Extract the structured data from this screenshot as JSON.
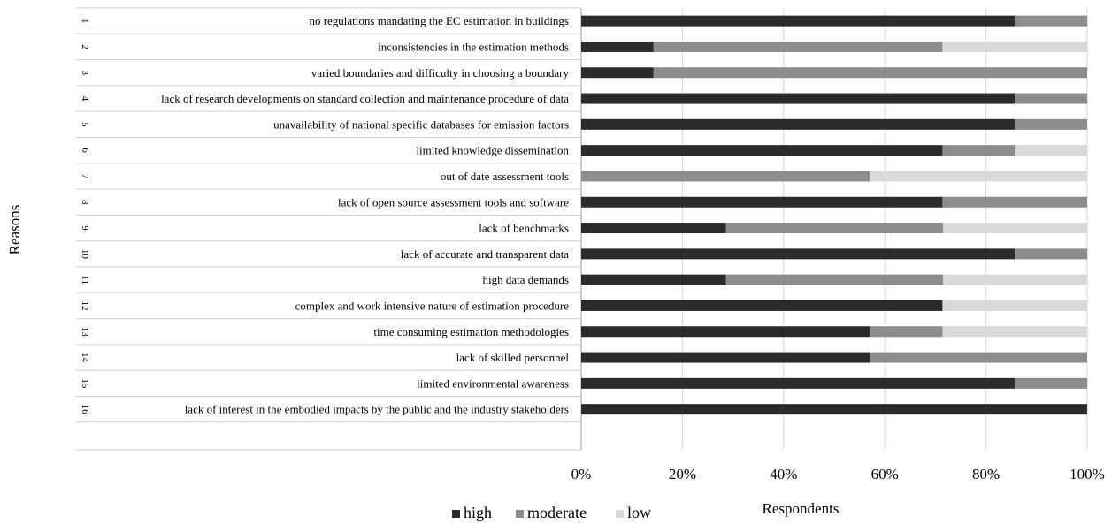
{
  "chart_data": {
    "type": "bar",
    "orientation": "horizontal",
    "stacked": true,
    "percent": true,
    "xlabel": "Respondents",
    "ylabel": "Reasons",
    "xlim": [
      0,
      100
    ],
    "xticks": [
      "0%",
      "20%",
      "40%",
      "60%",
      "80%",
      "100%"
    ],
    "grid": true,
    "legend_position": "bottom",
    "categories": [
      {
        "num": "1",
        "label": "no regulations mandating the EC estimation in buildings"
      },
      {
        "num": "2",
        "label": "inconsistencies in the estimation methods"
      },
      {
        "num": "3",
        "label": "varied boundaries and difficulty in choosing a boundary"
      },
      {
        "num": "4",
        "label": "lack of research developments on standard collection and maintenance procedure of data"
      },
      {
        "num": "5",
        "label": "unavailability of national specific databases for emission factors"
      },
      {
        "num": "6",
        "label": "limited knowledge dissemination"
      },
      {
        "num": "7",
        "label": "out of date assessment tools"
      },
      {
        "num": "8",
        "label": "lack of open source assessment tools and software"
      },
      {
        "num": "9",
        "label": "lack of benchmarks"
      },
      {
        "num": "10",
        "label": "lack of accurate and transparent data"
      },
      {
        "num": "11",
        "label": "high data demands"
      },
      {
        "num": "12",
        "label": "complex and work intensive nature of estimation procedure"
      },
      {
        "num": "13",
        "label": "time consuming estimation methodologies"
      },
      {
        "num": "14",
        "label": "lack of skilled personnel"
      },
      {
        "num": "15",
        "label": "limited environmental awareness"
      },
      {
        "num": "16",
        "label": "lack of interest in the embodied impacts by the public and the industry stakeholders"
      }
    ],
    "series": [
      {
        "name": "high",
        "color": "#2b2b2b",
        "values": [
          85.7,
          14.3,
          14.3,
          85.7,
          85.7,
          71.4,
          0,
          71.4,
          28.6,
          85.7,
          28.6,
          71.4,
          57.1,
          57.1,
          85.7,
          100
        ]
      },
      {
        "name": "moderate",
        "color": "#8c8c8c",
        "values": [
          14.3,
          57.1,
          85.7,
          14.3,
          14.3,
          14.3,
          57.1,
          28.6,
          42.9,
          14.3,
          42.9,
          0,
          14.3,
          42.9,
          14.3,
          0
        ]
      },
      {
        "name": "low",
        "color": "#d9d9d9",
        "values": [
          0,
          28.6,
          0,
          0,
          0,
          14.3,
          42.9,
          0,
          28.6,
          0,
          28.6,
          28.6,
          28.6,
          0,
          0,
          0
        ]
      }
    ]
  }
}
